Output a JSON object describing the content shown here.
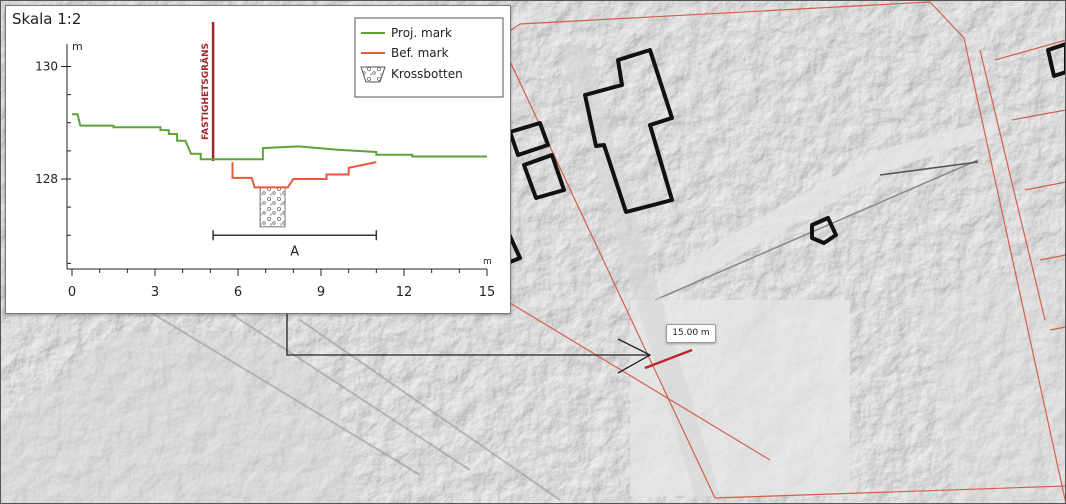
{
  "profile": {
    "scale": "Skala 1:2",
    "y_unit": "m",
    "x_unit": "m",
    "boundary_label": "FASTIGHETSGRÄNS",
    "dimension_label": "A"
  },
  "legend": {
    "items": [
      {
        "label": "Proj. mark",
        "color": "#5ea33a"
      },
      {
        "label": "Bef. mark",
        "color": "#e8593a"
      },
      {
        "label": "Krossbotten",
        "symbol": "gravel-pattern"
      }
    ]
  },
  "measurement": {
    "label": "15.00 m",
    "line_color": "#c0272d"
  },
  "map": {
    "parcel_line_color": "#d4604a",
    "building_outline_color": "#111111"
  },
  "chart_data": {
    "type": "line",
    "xlabel": "m",
    "ylabel": "m",
    "xlim": [
      0,
      15
    ],
    "ylim": [
      126.4,
      130.4
    ],
    "xticks": [
      0,
      3,
      6,
      9,
      12,
      15
    ],
    "yticks": [
      128,
      130
    ],
    "series": [
      {
        "name": "Proj. mark",
        "color": "#5ea33a",
        "points": [
          [
            0,
            129.15
          ],
          [
            0.2,
            129.15
          ],
          [
            0.3,
            128.95
          ],
          [
            1.5,
            128.95
          ],
          [
            1.5,
            128.92
          ],
          [
            3.2,
            128.92
          ],
          [
            3.2,
            128.87
          ],
          [
            3.5,
            128.87
          ],
          [
            3.5,
            128.8
          ],
          [
            3.8,
            128.8
          ],
          [
            3.8,
            128.68
          ],
          [
            4.1,
            128.68
          ],
          [
            4.3,
            128.45
          ],
          [
            4.65,
            128.45
          ],
          [
            4.65,
            128.35
          ],
          [
            6.9,
            128.35
          ],
          [
            6.9,
            128.55
          ],
          [
            8.2,
            128.58
          ],
          [
            9.6,
            128.52
          ],
          [
            11.0,
            128.48
          ],
          [
            11.0,
            128.43
          ],
          [
            12.3,
            128.43
          ],
          [
            12.3,
            128.4
          ],
          [
            15,
            128.4
          ]
        ]
      },
      {
        "name": "Bef. mark",
        "color": "#e8593a",
        "points": [
          [
            5.8,
            128.3
          ],
          [
            5.8,
            128.02
          ],
          [
            6.5,
            128.02
          ],
          [
            6.6,
            127.85
          ],
          [
            7.8,
            127.85
          ],
          [
            8.0,
            128.0
          ],
          [
            9.2,
            128.0
          ],
          [
            9.2,
            128.08
          ],
          [
            10.0,
            128.08
          ],
          [
            10.0,
            128.2
          ],
          [
            11.0,
            128.3
          ]
        ]
      }
    ],
    "annotations": [
      {
        "type": "vertical-line",
        "x": 5.1,
        "label": "FASTIGHETSGRÄNS",
        "color": "#a0272d"
      },
      {
        "type": "dimension",
        "x_from": 5.1,
        "x_to": 11.0,
        "label": "A"
      },
      {
        "type": "trench",
        "x_from": 6.8,
        "x_to": 7.7,
        "y_from": 127.15,
        "y_to": 127.85,
        "label": "Krossbotten"
      }
    ]
  }
}
